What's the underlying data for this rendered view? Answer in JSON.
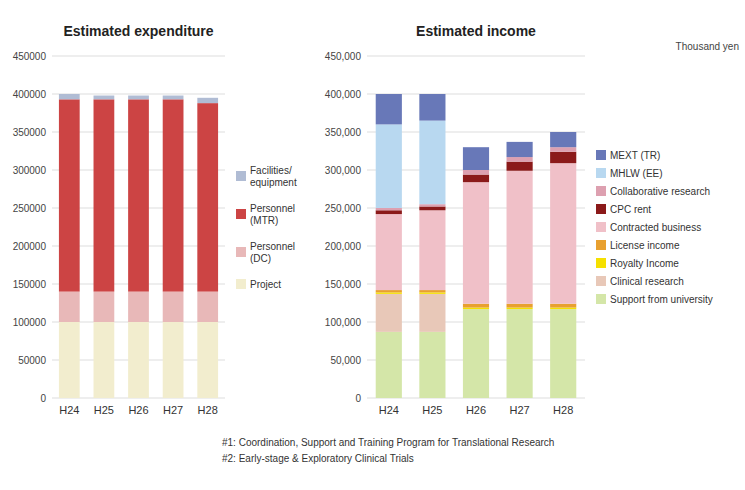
{
  "chart_data": [
    {
      "type": "bar",
      "stacked": true,
      "title": "Estimated expenditure",
      "categories": [
        "H24",
        "H25",
        "H26",
        "H27",
        "H28"
      ],
      "series": [
        {
          "name": "Project",
          "color": "#f2edce",
          "values": [
            100000,
            100000,
            100000,
            100000,
            100000
          ]
        },
        {
          "name": "Personnel\n(DC)",
          "color": "#e8b8b8",
          "values": [
            40000,
            40000,
            40000,
            40000,
            40000
          ]
        },
        {
          "name": "Personnel\n(MTR)",
          "color": "#cc4444",
          "values": [
            253000,
            253000,
            253000,
            253000,
            248000
          ]
        },
        {
          "name": "Facilities/\nequipment",
          "color": "#b0bcd4",
          "values": [
            7000,
            5000,
            5000,
            5000,
            7000
          ]
        }
      ],
      "ylim": [
        0,
        450000
      ],
      "yticks": [
        0,
        50000,
        100000,
        150000,
        200000,
        250000,
        300000,
        350000,
        400000,
        450000
      ],
      "grid": true,
      "legend": "right"
    },
    {
      "type": "bar",
      "stacked": true,
      "title": "Estimated income",
      "categories": [
        "H24",
        "H25",
        "H26",
        "H27",
        "H28"
      ],
      "series": [
        {
          "name": "Support from university",
          "color": "#d4e6a8",
          "values": [
            87000,
            87000,
            117000,
            117000,
            117000
          ]
        },
        {
          "name": "Clinical research",
          "color": "#e8c8b8",
          "values": [
            50000,
            50000,
            0,
            0,
            0
          ]
        },
        {
          "name": "Royalty Income",
          "color": "#f5e000",
          "values": [
            2000,
            2000,
            2000,
            2000,
            2000
          ]
        },
        {
          "name": "License income",
          "color": "#e8a030",
          "values": [
            3000,
            3000,
            5000,
            5000,
            5000
          ]
        },
        {
          "name": "Contracted business",
          "color": "#f0c0c8",
          "values": [
            100000,
            105000,
            160000,
            175000,
            185000
          ]
        },
        {
          "name": "CPC rent",
          "color": "#8b1a1a",
          "values": [
            5000,
            5000,
            10000,
            12000,
            15000
          ]
        },
        {
          "name": "Collaborative research",
          "color": "#dda0b0",
          "values": [
            3000,
            3000,
            6000,
            6000,
            6000
          ]
        },
        {
          "name": "MHLW (EE)",
          "color": "#b8d8f0",
          "values": [
            110000,
            110000,
            0,
            0,
            0
          ]
        },
        {
          "name": "MEXT (TR)",
          "color": "#6878b8",
          "values": [
            40000,
            35000,
            30000,
            20000,
            20000
          ]
        }
      ],
      "ylim": [
        0,
        450000
      ],
      "yticks": [
        0,
        {
          "value": 50000,
          "label": "50,000"
        },
        {
          "value": 100000,
          "label": "100,000"
        },
        {
          "value": 150000,
          "label": "150,000"
        },
        {
          "value": 200000,
          "label": "200,000"
        },
        {
          "value": 250000,
          "label": "250,000"
        },
        {
          "value": 300000,
          "label": "300,000"
        },
        {
          "value": 350000,
          "label": "350,000"
        },
        {
          "value": 400000,
          "label": "400,000"
        },
        {
          "value": 450000,
          "label": "450,000"
        }
      ],
      "grid": true,
      "legend": "right",
      "annotations": [
        "Thousand yen",
        "#1: Coordination, Support and Training Program for Translational Research",
        "#2: Early-stage & Exploratory Clinical Trials"
      ]
    }
  ]
}
